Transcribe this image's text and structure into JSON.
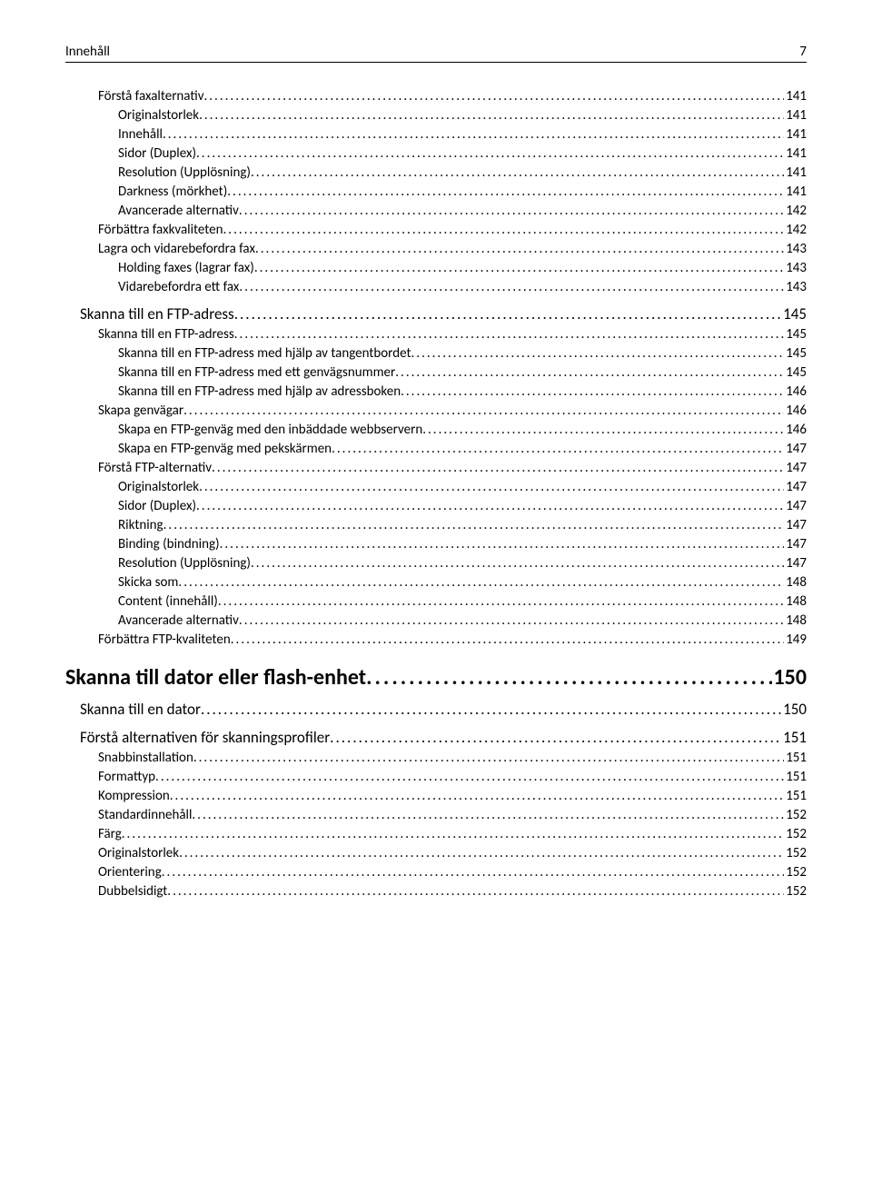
{
  "header": {
    "title": "Innehåll",
    "page": "7"
  },
  "toc": [
    {
      "level": "sub",
      "label": "Förstå faxalternativ",
      "page": "141"
    },
    {
      "level": "sub2",
      "label": "Originalstorlek",
      "page": "141"
    },
    {
      "level": "sub2",
      "label": "Innehåll",
      "page": "141"
    },
    {
      "level": "sub2",
      "label": "Sidor (Duplex)",
      "page": "141"
    },
    {
      "level": "sub2",
      "label": "Resolution (Upplösning)",
      "page": "141"
    },
    {
      "level": "sub2",
      "label": "Darkness (mörkhet)",
      "page": "141"
    },
    {
      "level": "sub2",
      "label": "Avancerade alternativ",
      "page": "142"
    },
    {
      "level": "sub",
      "label": "Förbättra faxkvaliteten",
      "page": "142"
    },
    {
      "level": "sub",
      "label": "Lagra och vidarebefordra fax",
      "page": "143"
    },
    {
      "level": "sub2",
      "label": "Holding faxes (lagrar fax)",
      "page": "143"
    },
    {
      "level": "sub2",
      "label": "Vidarebefordra ett fax",
      "page": "143"
    },
    {
      "level": "sec",
      "label": "Skanna till en FTP-adress",
      "page": "145"
    },
    {
      "level": "sub",
      "label": "Skanna till en FTP-adress",
      "page": "145"
    },
    {
      "level": "sub2",
      "label": "Skanna till en FTP-adress med hjälp av tangentbordet",
      "page": "145"
    },
    {
      "level": "sub2",
      "label": "Skanna till en FTP-adress med ett genvägsnummer",
      "page": "145"
    },
    {
      "level": "sub2",
      "label": "Skanna till en FTP-adress med hjälp av adressboken",
      "page": "146"
    },
    {
      "level": "sub",
      "label": "Skapa genvägar",
      "page": "146"
    },
    {
      "level": "sub2",
      "label": "Skapa en FTP-genväg med den inbäddade webbservern",
      "page": "146"
    },
    {
      "level": "sub2",
      "label": "Skapa en FTP-genväg med pekskärmen",
      "page": "147"
    },
    {
      "level": "sub",
      "label": "Förstå FTP-alternativ",
      "page": "147"
    },
    {
      "level": "sub2",
      "label": "Originalstorlek",
      "page": "147"
    },
    {
      "level": "sub2",
      "label": "Sidor (Duplex)",
      "page": "147"
    },
    {
      "level": "sub2",
      "label": "Riktning",
      "page": "147"
    },
    {
      "level": "sub2",
      "label": "Binding (bindning)",
      "page": "147"
    },
    {
      "level": "sub2",
      "label": "Resolution (Upplösning)",
      "page": "147"
    },
    {
      "level": "sub2",
      "label": "Skicka som",
      "page": "148"
    },
    {
      "level": "sub2",
      "label": "Content (innehåll)",
      "page": "148"
    },
    {
      "level": "sub2",
      "label": "Avancerade alternativ",
      "page": "148"
    },
    {
      "level": "sub",
      "label": "Förbättra FTP-kvaliteten",
      "page": "149"
    },
    {
      "level": "ch",
      "label": "Skanna till dator eller flash-enhet",
      "page": "150"
    },
    {
      "level": "sec",
      "label": "Skanna till en dator",
      "page": "150"
    },
    {
      "level": "sec",
      "label": "Förstå alternativen för skanningsprofiler",
      "page": "151"
    },
    {
      "level": "sub",
      "label": "Snabbinstallation",
      "page": "151"
    },
    {
      "level": "sub",
      "label": "Formattyp",
      "page": "151"
    },
    {
      "level": "sub",
      "label": "Kompression",
      "page": "151"
    },
    {
      "level": "sub",
      "label": "Standardinnehåll",
      "page": "152"
    },
    {
      "level": "sub",
      "label": "Färg",
      "page": "152"
    },
    {
      "level": "sub",
      "label": "Originalstorlek",
      "page": "152"
    },
    {
      "level": "sub",
      "label": "Orientering",
      "page": "152"
    },
    {
      "level": "sub",
      "label": "Dubbelsidigt",
      "page": "152"
    }
  ]
}
